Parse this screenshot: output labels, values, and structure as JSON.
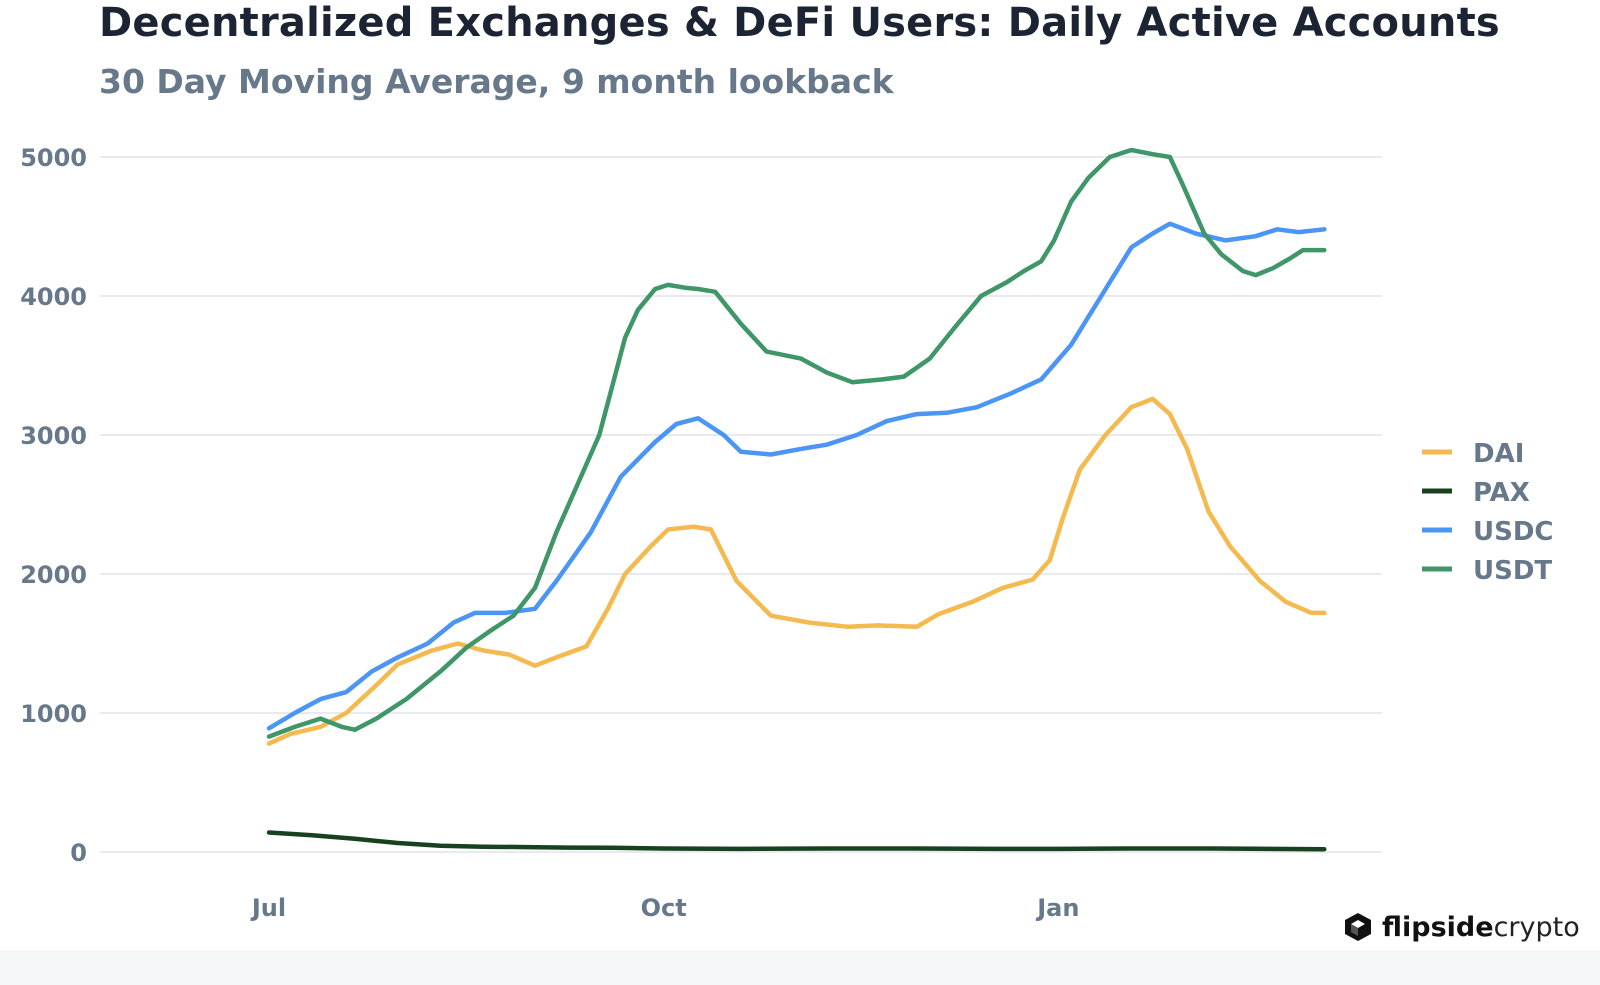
{
  "title": "Decentralized Exchanges & DeFi Users: Daily Active Accounts",
  "subtitle": "30 Day Moving Average, 9 month lookback",
  "brand": {
    "name_bold": "flipside",
    "name_light": "crypto",
    "logo_icon": "flipside-cube-logo"
  },
  "chart_data": {
    "type": "line",
    "title": "Decentralized Exchanges & DeFi Users: Daily Active Accounts",
    "subtitle": "30 Day Moving Average, 9 month lookback",
    "ylim": [
      0,
      5000
    ],
    "yticks": [
      0,
      1000,
      2000,
      3000,
      4000,
      5000
    ],
    "xticks": [
      {
        "label": "Jul",
        "day": 0
      },
      {
        "label": "Oct",
        "day": 92
      },
      {
        "label": "Jan",
        "day": 184
      }
    ],
    "grid": true,
    "legend_position": "right",
    "series": [
      {
        "name": "DAI",
        "color": "#f4b94f",
        "points": [
          [
            0,
            780
          ],
          [
            5,
            850
          ],
          [
            12,
            900
          ],
          [
            18,
            1000
          ],
          [
            25,
            1200
          ],
          [
            30,
            1350
          ],
          [
            38,
            1450
          ],
          [
            44,
            1500
          ],
          [
            50,
            1450
          ],
          [
            56,
            1420
          ],
          [
            62,
            1340
          ],
          [
            67,
            1400
          ],
          [
            74,
            1480
          ],
          [
            79,
            1750
          ],
          [
            83,
            2000
          ],
          [
            89,
            2200
          ],
          [
            93,
            2320
          ],
          [
            99,
            2340
          ],
          [
            103,
            2320
          ],
          [
            109,
            1950
          ],
          [
            117,
            1700
          ],
          [
            126,
            1650
          ],
          [
            135,
            1620
          ],
          [
            142,
            1630
          ],
          [
            151,
            1620
          ],
          [
            156,
            1710
          ],
          [
            164,
            1800
          ],
          [
            171,
            1900
          ],
          [
            178,
            1960
          ],
          [
            182,
            2100
          ],
          [
            185,
            2400
          ],
          [
            189,
            2750
          ],
          [
            195,
            3000
          ],
          [
            201,
            3200
          ],
          [
            206,
            3260
          ],
          [
            210,
            3150
          ],
          [
            214,
            2900
          ],
          [
            219,
            2450
          ],
          [
            224,
            2200
          ],
          [
            231,
            1950
          ],
          [
            237,
            1800
          ],
          [
            243,
            1720
          ],
          [
            246,
            1720
          ]
        ]
      },
      {
        "name": "PAX",
        "color": "#18421f",
        "points": [
          [
            0,
            140
          ],
          [
            10,
            120
          ],
          [
            20,
            95
          ],
          [
            30,
            65
          ],
          [
            40,
            45
          ],
          [
            50,
            38
          ],
          [
            60,
            35
          ],
          [
            70,
            32
          ],
          [
            80,
            30
          ],
          [
            92,
            25
          ],
          [
            110,
            22
          ],
          [
            130,
            25
          ],
          [
            150,
            25
          ],
          [
            170,
            22
          ],
          [
            184,
            22
          ],
          [
            200,
            25
          ],
          [
            220,
            25
          ],
          [
            246,
            20
          ]
        ]
      },
      {
        "name": "USDC",
        "color": "#4a95f5",
        "points": [
          [
            0,
            890
          ],
          [
            6,
            1000
          ],
          [
            12,
            1100
          ],
          [
            18,
            1150
          ],
          [
            24,
            1300
          ],
          [
            30,
            1400
          ],
          [
            37,
            1500
          ],
          [
            43,
            1650
          ],
          [
            48,
            1720
          ],
          [
            55,
            1720
          ],
          [
            62,
            1750
          ],
          [
            67,
            1950
          ],
          [
            75,
            2300
          ],
          [
            82,
            2700
          ],
          [
            90,
            2950
          ],
          [
            95,
            3080
          ],
          [
            100,
            3120
          ],
          [
            106,
            3000
          ],
          [
            110,
            2880
          ],
          [
            117,
            2860
          ],
          [
            124,
            2900
          ],
          [
            130,
            2930
          ],
          [
            137,
            3000
          ],
          [
            144,
            3100
          ],
          [
            151,
            3150
          ],
          [
            158,
            3160
          ],
          [
            165,
            3200
          ],
          [
            173,
            3300
          ],
          [
            180,
            3400
          ],
          [
            187,
            3650
          ],
          [
            194,
            4000
          ],
          [
            201,
            4350
          ],
          [
            206,
            4450
          ],
          [
            210,
            4520
          ],
          [
            216,
            4450
          ],
          [
            223,
            4400
          ],
          [
            230,
            4430
          ],
          [
            235,
            4480
          ],
          [
            240,
            4460
          ],
          [
            246,
            4480
          ]
        ]
      },
      {
        "name": "USDT",
        "color": "#3f9668",
        "points": [
          [
            0,
            830
          ],
          [
            6,
            900
          ],
          [
            12,
            960
          ],
          [
            17,
            900
          ],
          [
            20,
            880
          ],
          [
            25,
            960
          ],
          [
            32,
            1100
          ],
          [
            40,
            1300
          ],
          [
            46,
            1470
          ],
          [
            52,
            1600
          ],
          [
            57,
            1700
          ],
          [
            62,
            1900
          ],
          [
            67,
            2300
          ],
          [
            72,
            2650
          ],
          [
            77,
            3000
          ],
          [
            80,
            3350
          ],
          [
            83,
            3700
          ],
          [
            86,
            3900
          ],
          [
            90,
            4050
          ],
          [
            93,
            4080
          ],
          [
            97,
            4060
          ],
          [
            100,
            4050
          ],
          [
            104,
            4030
          ],
          [
            110,
            3800
          ],
          [
            116,
            3600
          ],
          [
            124,
            3550
          ],
          [
            130,
            3450
          ],
          [
            136,
            3380
          ],
          [
            143,
            3400
          ],
          [
            148,
            3420
          ],
          [
            154,
            3550
          ],
          [
            160,
            3780
          ],
          [
            166,
            4000
          ],
          [
            172,
            4100
          ],
          [
            176,
            4180
          ],
          [
            180,
            4250
          ],
          [
            183,
            4400
          ],
          [
            187,
            4680
          ],
          [
            191,
            4850
          ],
          [
            196,
            5000
          ],
          [
            201,
            5050
          ],
          [
            206,
            5020
          ],
          [
            210,
            5000
          ],
          [
            213,
            4800
          ],
          [
            218,
            4450
          ],
          [
            222,
            4300
          ],
          [
            227,
            4180
          ],
          [
            230,
            4150
          ],
          [
            234,
            4200
          ],
          [
            238,
            4270
          ],
          [
            241,
            4330
          ],
          [
            246,
            4330
          ]
        ]
      }
    ]
  }
}
